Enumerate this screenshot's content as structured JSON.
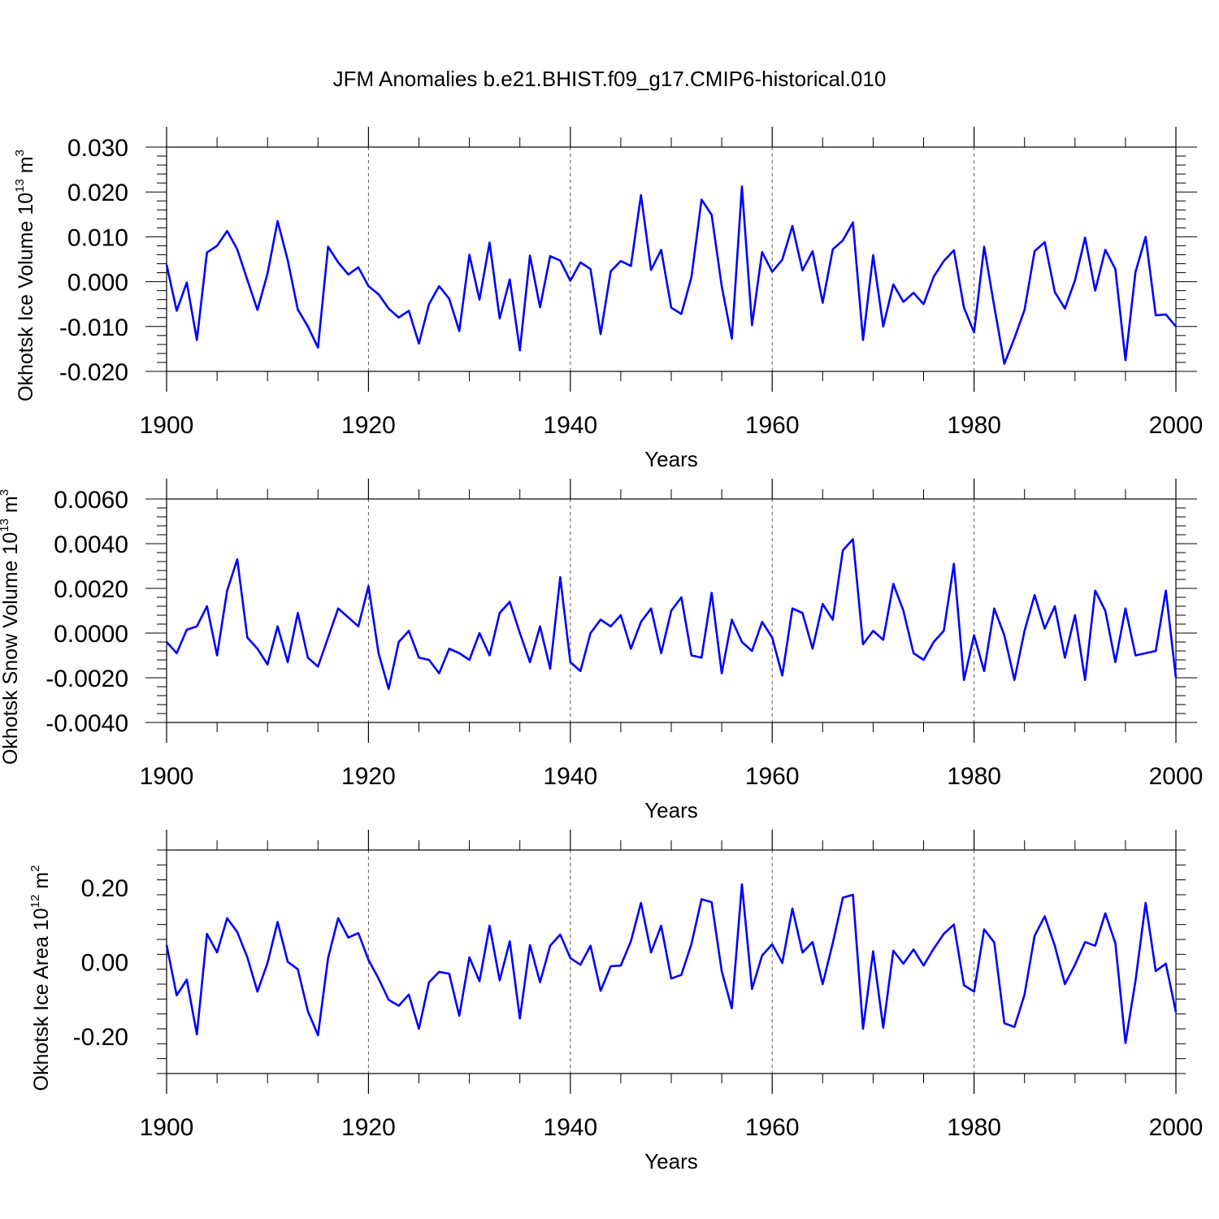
{
  "chart_data": {
    "type": "line",
    "title": "JFM Anomalies b.e21.BHIST.f09_g17.CMIP6-historical.010",
    "line_color": "#0000ff",
    "xlim": [
      1900,
      2000
    ],
    "xticks": [
      1900,
      1920,
      1940,
      1960,
      1980,
      2000
    ],
    "xlabel": "Years",
    "panels": [
      {
        "ylabel_main": "Okhotsk Ice Volume 10",
        "ylabel_exp": "13",
        "ylabel_unit": "m",
        "ylabel_unit_exp": "3",
        "ylim": [
          -0.02,
          0.03
        ],
        "yticks": [
          "0.030",
          "0.020",
          "0.010",
          "0.000",
          "-0.010",
          "-0.020"
        ],
        "ytick_values": [
          0.03,
          0.02,
          0.01,
          0.0,
          -0.01,
          -0.02
        ],
        "x": [
          1900,
          1901,
          1902,
          1903,
          1904,
          1905,
          1906,
          1907,
          1908,
          1909,
          1910,
          1911,
          1912,
          1913,
          1914,
          1915,
          1916,
          1917,
          1918,
          1919,
          1920,
          1921,
          1922,
          1923,
          1924,
          1925,
          1926,
          1927,
          1928,
          1929,
          1930,
          1931,
          1932,
          1933,
          1934,
          1935,
          1936,
          1937,
          1938,
          1939,
          1940,
          1941,
          1942,
          1943,
          1944,
          1945,
          1946,
          1947,
          1948,
          1949,
          1950,
          1951,
          1952,
          1953,
          1954,
          1955,
          1956,
          1957,
          1958,
          1959,
          1960,
          1961,
          1962,
          1963,
          1964,
          1965,
          1966,
          1967,
          1968,
          1969,
          1970,
          1971,
          1972,
          1973,
          1974,
          1975,
          1976,
          1977,
          1978,
          1979,
          1980,
          1981,
          1982,
          1983,
          1984,
          1985,
          1986,
          1987,
          1988,
          1989,
          1990,
          1991,
          1992,
          1993,
          1994,
          1995,
          1996,
          1997,
          1998,
          1999,
          2000
        ],
        "values": [
          0.0038,
          -0.0065,
          -0.0002,
          -0.013,
          0.0065,
          0.008,
          0.0113,
          0.0072,
          0.0004,
          -0.0063,
          0.0018,
          0.0135,
          0.0048,
          -0.0062,
          -0.01,
          -0.0147,
          0.0078,
          0.0043,
          0.0016,
          0.0032,
          -0.001,
          -0.0028,
          -0.006,
          -0.008,
          -0.0065,
          -0.0138,
          -0.005,
          -0.001,
          -0.0038,
          -0.011,
          0.006,
          -0.004,
          0.0087,
          -0.0082,
          0.0005,
          -0.0153,
          0.0058,
          -0.0057,
          0.0057,
          0.0047,
          0.0002,
          0.0043,
          0.0028,
          -0.0117,
          0.0023,
          0.0046,
          0.0035,
          0.0193,
          0.0026,
          0.0071,
          -0.0058,
          -0.0072,
          0.001,
          0.0183,
          0.0149,
          -0.001,
          -0.0127,
          0.0212,
          -0.0097,
          0.0066,
          0.0022,
          0.0049,
          0.0124,
          0.0025,
          0.0068,
          -0.0047,
          0.0072,
          0.0092,
          0.0132,
          -0.013,
          0.0059,
          -0.01,
          -0.0006,
          -0.0045,
          -0.0025,
          -0.005,
          0.0011,
          0.0046,
          0.007,
          -0.0058,
          -0.0113,
          0.0078,
          -0.0055,
          -0.0183,
          -0.0126,
          -0.0063,
          0.0068,
          0.0088,
          -0.0023,
          -0.006,
          0.0003,
          0.0098,
          -0.002,
          0.0071,
          0.0028,
          -0.0175,
          0.0022,
          0.01,
          -0.0075,
          -0.0073,
          -0.01
        ]
      },
      {
        "ylabel_main": "Okhotsk Snow Volume 10",
        "ylabel_exp": "13",
        "ylabel_unit": "m",
        "ylabel_unit_exp": "3",
        "ylim": [
          -0.004,
          0.006
        ],
        "yticks": [
          "0.0060",
          "0.0040",
          "0.0020",
          "0.0000",
          "-0.0020",
          "-0.0040"
        ],
        "ytick_values": [
          0.006,
          0.004,
          0.002,
          0.0,
          -0.002,
          -0.004
        ],
        "x": [
          1900,
          1901,
          1902,
          1903,
          1904,
          1905,
          1906,
          1907,
          1908,
          1909,
          1910,
          1911,
          1912,
          1913,
          1914,
          1915,
          1916,
          1917,
          1918,
          1919,
          1920,
          1921,
          1922,
          1923,
          1924,
          1925,
          1926,
          1927,
          1928,
          1929,
          1930,
          1931,
          1932,
          1933,
          1934,
          1935,
          1936,
          1937,
          1938,
          1939,
          1940,
          1941,
          1942,
          1943,
          1944,
          1945,
          1946,
          1947,
          1948,
          1949,
          1950,
          1951,
          1952,
          1953,
          1954,
          1955,
          1956,
          1957,
          1958,
          1959,
          1960,
          1961,
          1962,
          1963,
          1964,
          1965,
          1966,
          1967,
          1968,
          1969,
          1970,
          1971,
          1972,
          1973,
          1974,
          1975,
          1976,
          1977,
          1978,
          1979,
          1980,
          1981,
          1982,
          1983,
          1984,
          1985,
          1986,
          1987,
          1988,
          1989,
          1990,
          1991,
          1992,
          1993,
          1994,
          1995,
          1996,
          1997,
          1998,
          1999,
          2000
        ],
        "values": [
          -0.0004,
          -0.0009,
          0.00015,
          0.0003,
          0.0012,
          -0.001,
          0.0019,
          0.0033,
          -0.0002,
          -0.0007,
          -0.0014,
          0.0003,
          -0.0013,
          0.0009,
          -0.0011,
          -0.0015,
          -0.0002,
          0.0011,
          0.0007,
          0.0003,
          0.0021,
          -0.0009,
          -0.0025,
          -0.0004,
          0.0001,
          -0.0011,
          -0.0012,
          -0.0018,
          -0.0007,
          -0.0009,
          -0.0012,
          0.0,
          -0.001,
          0.0009,
          0.0014,
          0.0,
          -0.0013,
          0.0003,
          -0.0016,
          0.0025,
          -0.0013,
          -0.0017,
          0.0,
          0.0006,
          0.0003,
          0.0008,
          -0.0007,
          0.0005,
          0.0011,
          -0.0009,
          0.001,
          0.0016,
          -0.001,
          -0.0011,
          0.0018,
          -0.0018,
          0.0006,
          -0.0004,
          -0.0008,
          0.0005,
          -0.0002,
          -0.0019,
          0.0011,
          0.0009,
          -0.0007,
          0.0013,
          0.0006,
          0.0037,
          0.0042,
          -0.0005,
          0.0001,
          -0.0003,
          0.0022,
          0.001,
          -0.0009,
          -0.0012,
          -0.0004,
          0.0001,
          0.0031,
          -0.0021,
          -0.0001,
          -0.0017,
          0.0011,
          -0.0001,
          -0.0021,
          0.0001,
          0.0017,
          0.0002,
          0.0012,
          -0.0011,
          0.0008,
          -0.0021,
          0.0019,
          0.001,
          -0.0013,
          0.0011,
          -0.001,
          -0.0009,
          -0.0008,
          0.0019,
          -0.002
        ]
      },
      {
        "ylabel_main": "Okhotsk Ice Area 10",
        "ylabel_exp": "12",
        "ylabel_unit": "m",
        "ylabel_unit_exp": "2",
        "ylim": [
          -0.3,
          0.3
        ],
        "yticks": [
          "0.20",
          "0.00",
          "-0.20"
        ],
        "ytick_values": [
          0.2,
          0.0,
          -0.2
        ],
        "x": [
          1900,
          1901,
          1902,
          1903,
          1904,
          1905,
          1906,
          1907,
          1908,
          1909,
          1910,
          1911,
          1912,
          1913,
          1914,
          1915,
          1916,
          1917,
          1918,
          1919,
          1920,
          1921,
          1922,
          1923,
          1924,
          1925,
          1926,
          1927,
          1928,
          1929,
          1930,
          1931,
          1932,
          1933,
          1934,
          1935,
          1936,
          1937,
          1938,
          1939,
          1940,
          1941,
          1942,
          1943,
          1944,
          1945,
          1946,
          1947,
          1948,
          1949,
          1950,
          1951,
          1952,
          1953,
          1954,
          1955,
          1956,
          1957,
          1958,
          1959,
          1960,
          1961,
          1962,
          1963,
          1964,
          1965,
          1966,
          1967,
          1968,
          1969,
          1970,
          1971,
          1972,
          1973,
          1974,
          1975,
          1976,
          1977,
          1978,
          1979,
          1980,
          1981,
          1982,
          1983,
          1984,
          1985,
          1986,
          1987,
          1988,
          1989,
          1990,
          1991,
          1992,
          1993,
          1994,
          1995,
          1996,
          1997,
          1998,
          1999,
          2000
        ],
        "values": [
          0.045,
          -0.09,
          -0.048,
          -0.195,
          0.075,
          0.025,
          0.117,
          0.08,
          0.012,
          -0.08,
          -0.003,
          0.107,
          0.0,
          -0.02,
          -0.133,
          -0.197,
          0.01,
          0.117,
          0.065,
          0.077,
          0.005,
          -0.045,
          -0.102,
          -0.118,
          -0.088,
          -0.18,
          -0.055,
          -0.027,
          -0.032,
          -0.145,
          0.012,
          -0.052,
          0.097,
          -0.05,
          0.055,
          -0.152,
          0.045,
          -0.055,
          0.043,
          0.073,
          0.01,
          -0.008,
          0.043,
          -0.078,
          -0.012,
          -0.01,
          0.055,
          0.158,
          0.025,
          0.097,
          -0.045,
          -0.035,
          0.048,
          0.168,
          0.16,
          -0.025,
          -0.125,
          0.208,
          -0.073,
          0.017,
          0.047,
          -0.003,
          0.143,
          0.025,
          0.053,
          -0.06,
          0.05,
          0.172,
          0.18,
          -0.18,
          0.028,
          -0.177,
          0.03,
          -0.005,
          0.033,
          -0.01,
          0.035,
          0.075,
          0.1,
          -0.063,
          -0.08,
          0.087,
          0.052,
          -0.165,
          -0.175,
          -0.088,
          0.07,
          0.122,
          0.043,
          -0.06,
          -0.008,
          0.053,
          0.043,
          0.13,
          0.05,
          -0.218,
          -0.05,
          0.158,
          -0.025,
          -0.005,
          -0.135
        ]
      }
    ]
  }
}
